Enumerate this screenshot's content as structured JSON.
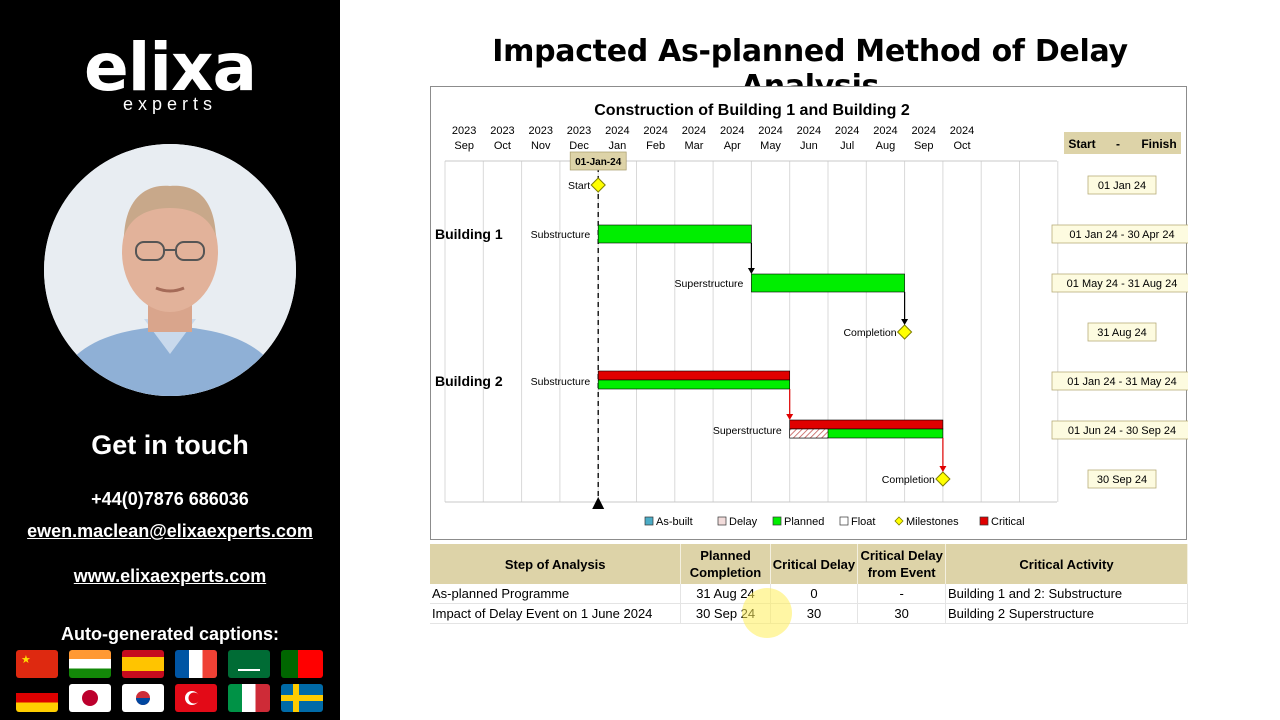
{
  "sidebar": {
    "logo_main": "elixa",
    "logo_sub": "experts",
    "get_in_touch": "Get in touch",
    "phone": "+44(0)7876 686036",
    "email": "ewen.maclean@elixaexperts.com",
    "website": "www.elixaexperts.com",
    "captions_label": "Auto-generated captions:",
    "flags": [
      "china-flag",
      "india-flag",
      "spain-flag",
      "france-flag",
      "saudi-arabia-flag",
      "portugal-flag",
      "germany-flag",
      "japan-flag",
      "south-korea-flag",
      "turkey-flag",
      "italy-flag",
      "sweden-flag"
    ]
  },
  "main": {
    "title": "Impacted As-planned Method of Delay Analysis"
  },
  "chart_data": {
    "type": "gantt",
    "title": "Construction of Building 1 and Building 2",
    "months": [
      {
        "year": "2023",
        "month": "Sep"
      },
      {
        "year": "2023",
        "month": "Oct"
      },
      {
        "year": "2023",
        "month": "Nov"
      },
      {
        "year": "2023",
        "month": "Dec"
      },
      {
        "year": "2024",
        "month": "Jan"
      },
      {
        "year": "2024",
        "month": "Feb"
      },
      {
        "year": "2024",
        "month": "Mar"
      },
      {
        "year": "2024",
        "month": "Apr"
      },
      {
        "year": "2024",
        "month": "May"
      },
      {
        "year": "2024",
        "month": "Jun"
      },
      {
        "year": "2024",
        "month": "Jul"
      },
      {
        "year": "2024",
        "month": "Aug"
      },
      {
        "year": "2024",
        "month": "Sep"
      },
      {
        "year": "2024",
        "month": "Oct"
      }
    ],
    "data_date_label": "01-Jan-24",
    "data_date": "2024-01-01",
    "start_finish_header": {
      "start": "Start",
      "sep": "-",
      "finish": "Finish"
    },
    "groups": [
      "Building 1",
      "Building 2"
    ],
    "tasks": [
      {
        "group": "",
        "name": "Start",
        "kind": "milestone",
        "date": "2024-01-01",
        "label": "01 Jan 24"
      },
      {
        "group": "Building 1",
        "name": "Substructure",
        "kind": "bar",
        "start": "2024-01-01",
        "end": "2024-04-30",
        "planned": true,
        "critical": false,
        "label": "01 Jan 24 - 30 Apr 24"
      },
      {
        "group": "",
        "name": "Superstructure",
        "kind": "bar",
        "start": "2024-05-01",
        "end": "2024-08-31",
        "planned": true,
        "critical": false,
        "label": "01 May 24 - 31 Aug 24"
      },
      {
        "group": "",
        "name": "Completion",
        "kind": "milestone",
        "date": "2024-08-31",
        "label": "31 Aug 24"
      },
      {
        "group": "Building 2",
        "name": "Substructure",
        "kind": "bar",
        "start": "2024-01-01",
        "end": "2024-05-31",
        "planned": true,
        "critical": true,
        "label": "01 Jan 24 - 31 May 24"
      },
      {
        "group": "",
        "name": "Superstructure",
        "kind": "bar",
        "start": "2024-06-01",
        "end": "2024-09-30",
        "planned": true,
        "critical": true,
        "delay_start": "2024-06-01",
        "delay_end": "2024-06-30",
        "label": "01 Jun 24 - 30 Sep 24"
      },
      {
        "group": "",
        "name": "Completion",
        "kind": "milestone",
        "date": "2024-09-30",
        "label": "30 Sep 24"
      }
    ],
    "legend": [
      {
        "name": "As-built",
        "color": "#4bacc6"
      },
      {
        "name": "Delay",
        "color": "#f2dcdb"
      },
      {
        "name": "Planned",
        "color": "#00ee00"
      },
      {
        "name": "Float",
        "color": "#ffffff"
      },
      {
        "name": "Milestones",
        "color": "#ffff00"
      },
      {
        "name": "Critical",
        "color": "#e00000"
      }
    ]
  },
  "analysis_table": {
    "headers": [
      "Step of Analysis",
      "Planned Completion",
      "Critical Delay",
      "Critical Delay from Event",
      "Critical Activity"
    ],
    "rows": [
      [
        "As-planned Programme",
        "31 Aug 24",
        "0",
        "-",
        "Building 1 and 2: Substructure"
      ],
      [
        "Impact of Delay Event on 1 June 2024",
        "30 Sep 24",
        "30",
        "30",
        "Building 2 Superstructure"
      ]
    ]
  },
  "colors": {
    "planned": "#00ee00",
    "critical": "#e00000",
    "milestone": "#ffff00",
    "label_bg": "#fdfbe0",
    "header_bg": "#ddd3a8"
  }
}
